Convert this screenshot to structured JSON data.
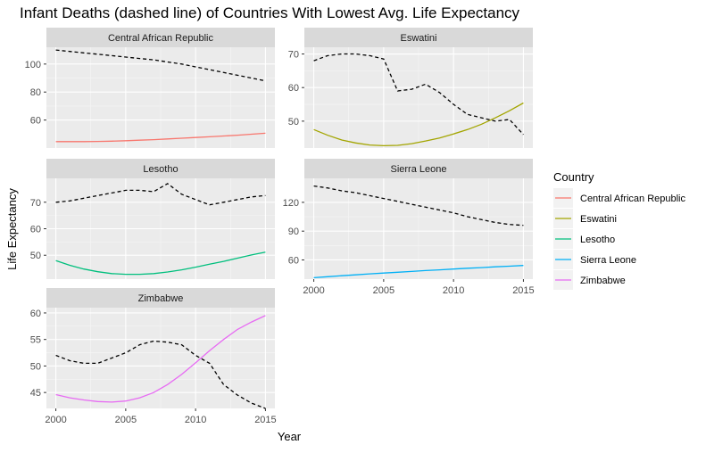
{
  "chart_data": {
    "type": "line",
    "title": "Infant Deaths (dashed line) of Countries With Lowest Avg. Life Expectancy",
    "xlabel": "Year",
    "ylabel": "Life Expectancy",
    "x": [
      2000,
      2001,
      2002,
      2003,
      2004,
      2005,
      2006,
      2007,
      2008,
      2009,
      2010,
      2011,
      2012,
      2013,
      2014,
      2015
    ],
    "x_ticks": [
      2000,
      2005,
      2010,
      2015
    ],
    "legend": {
      "title": "Country",
      "position": "right",
      "items": [
        {
          "name": "Central African Republic",
          "color": "#F8766D"
        },
        {
          "name": "Eswatini",
          "color": "#A3A500"
        },
        {
          "name": "Lesotho",
          "color": "#00BF7D"
        },
        {
          "name": "Sierra Leone",
          "color": "#00B0F6"
        },
        {
          "name": "Zimbabwe",
          "color": "#E76BF3"
        }
      ]
    },
    "panels": [
      {
        "strip": "Central African Republic",
        "color": "#F8766D",
        "ylim": [
          40,
          112
        ],
        "y_ticks": [
          60,
          80,
          100
        ],
        "life_expectancy": [
          44.6,
          44.6,
          44.6,
          44.7,
          44.9,
          45.2,
          45.6,
          46.0,
          46.5,
          47.0,
          47.5,
          48.0,
          48.6,
          49.2,
          49.9,
          50.6
        ],
        "infant_deaths": [
          110,
          109,
          108,
          107,
          106,
          105,
          104,
          103,
          101.5,
          100,
          98,
          96,
          94,
          92,
          90,
          88
        ]
      },
      {
        "strip": "Eswatini",
        "color": "#A3A500",
        "ylim": [
          42,
          72
        ],
        "y_ticks": [
          50,
          60,
          70
        ],
        "life_expectancy": [
          47.5,
          45.8,
          44.4,
          43.5,
          42.9,
          42.7,
          42.8,
          43.3,
          44.1,
          45.0,
          46.2,
          47.5,
          49.1,
          51.0,
          53.1,
          55.4
        ],
        "infant_deaths": [
          68,
          69.5,
          70,
          70,
          69.5,
          68.5,
          59,
          59.5,
          61,
          58.5,
          55,
          52,
          51,
          50,
          50.5,
          46
        ]
      },
      {
        "strip": "Lesotho",
        "color": "#00BF7D",
        "ylim": [
          41,
          79
        ],
        "y_ticks": [
          50,
          60,
          70
        ],
        "life_expectancy": [
          48,
          46.2,
          44.8,
          43.8,
          43.1,
          42.8,
          42.8,
          43.1,
          43.7,
          44.5,
          45.5,
          46.6,
          47.7,
          48.9,
          50.1,
          51.2
        ],
        "infant_deaths": [
          70,
          70.5,
          71.5,
          72.5,
          73.5,
          74.5,
          74.5,
          74,
          77,
          73,
          71,
          69,
          70,
          71,
          72,
          72.5
        ]
      },
      {
        "strip": "Sierra Leone",
        "color": "#00B0F6",
        "ylim": [
          40,
          145
        ],
        "y_ticks": [
          60,
          90,
          120
        ],
        "life_expectancy": [
          41.5,
          42.5,
          43.5,
          44.5,
          45.5,
          46.3,
          47.2,
          48.0,
          48.9,
          49.7,
          50.5,
          51.3,
          52.0,
          52.8,
          53.5,
          54.2
        ],
        "infant_deaths": [
          137,
          135,
          132,
          130,
          127,
          124,
          121,
          118,
          115,
          112,
          109,
          105,
          102,
          99,
          97,
          96
        ]
      },
      {
        "strip": "Zimbabwe",
        "color": "#E76BF3",
        "ylim": [
          42,
          61
        ],
        "y_ticks": [
          45,
          50,
          55,
          60
        ],
        "life_expectancy": [
          44.6,
          44.0,
          43.6,
          43.3,
          43.2,
          43.4,
          44.0,
          45.0,
          46.5,
          48.4,
          50.6,
          52.9,
          55.0,
          56.9,
          58.3,
          59.5
        ],
        "infant_deaths": [
          52,
          51,
          50.5,
          50.5,
          51.5,
          52.5,
          54,
          54.7,
          54.5,
          54,
          52,
          50.5,
          46.5,
          44.5,
          43,
          42
        ]
      }
    ],
    "grid": true
  }
}
